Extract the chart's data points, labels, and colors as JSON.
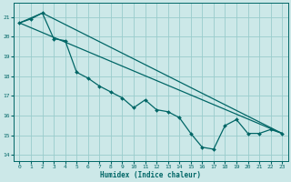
{
  "xlabel": "Humidex (Indice chaleur)",
  "bg_color": "#cce8e8",
  "grid_color": "#99cccc",
  "line_color": "#006666",
  "xlim": [
    -0.5,
    23.5
  ],
  "ylim": [
    13.7,
    21.7
  ],
  "yticks": [
    14,
    15,
    16,
    17,
    18,
    19,
    20,
    21
  ],
  "xticks": [
    0,
    1,
    2,
    3,
    4,
    5,
    6,
    7,
    8,
    9,
    10,
    11,
    12,
    13,
    14,
    15,
    16,
    17,
    18,
    19,
    20,
    21,
    22,
    23
  ],
  "line1_x": [
    0,
    1,
    2,
    3,
    4,
    5,
    6,
    7,
    8,
    9,
    10,
    11,
    12,
    13,
    14,
    15,
    16,
    17,
    18,
    19,
    20,
    21,
    22,
    23
  ],
  "line1_y": [
    20.7,
    20.9,
    21.2,
    19.9,
    19.8,
    18.2,
    17.9,
    17.5,
    17.2,
    16.9,
    16.4,
    16.8,
    16.3,
    16.2,
    15.9,
    15.1,
    14.4,
    14.3,
    15.5,
    15.8,
    15.1,
    15.1,
    15.3,
    15.1
  ],
  "line2_x": [
    0,
    23
  ],
  "line2_y": [
    20.7,
    15.1
  ],
  "line3_x": [
    0,
    2,
    23
  ],
  "line3_y": [
    20.7,
    21.2,
    15.1
  ]
}
